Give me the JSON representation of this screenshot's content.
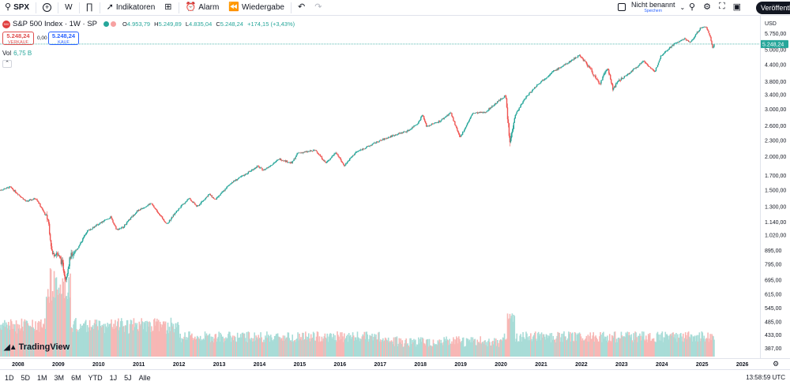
{
  "toolbar": {
    "symbol": "SPX",
    "interval": "W",
    "indicators": "Indikatoren",
    "alarm": "Alarm",
    "replay": "Wiedergabe",
    "layout_name": "Nicht benannt",
    "save_hint": "Speichern",
    "publish": "Veröffentl"
  },
  "legend": {
    "title": "S&P 500 Index · 1W · SP",
    "logo_text": "500",
    "open_label": "O",
    "open": "4.953,79",
    "high_label": "H",
    "high": "5.249,89",
    "low_label": "L",
    "low": "4.835,04",
    "close_label": "C",
    "close": "5.248,24",
    "change": "+174,15 (+3,43%)",
    "sell_price": "5.248,24",
    "sell_label": "VERKAUF",
    "spread": "0,00",
    "buy_price": "5.248,24",
    "buy_label": "KAUF",
    "vol_label": "Vol",
    "vol_value": "6,75 B"
  },
  "price_scale": {
    "currency": "USD",
    "current_price": "5.248,24"
  },
  "bottom": {
    "ranges": [
      "1D",
      "5D",
      "1M",
      "3M",
      "6M",
      "YTD",
      "1J",
      "5J",
      "Alle"
    ],
    "clock": "13:58:59 UTC",
    "watermark": "TradingView"
  },
  "colors": {
    "up": "#26a69a",
    "down": "#ef5350",
    "volume_up": "#a8dcd7",
    "volume_down": "#f7b7b5",
    "last_price": "#26a69a"
  },
  "chart_data": {
    "type": "candlestick",
    "title": "S&P 500 Index · 1W · SP",
    "scale": "log",
    "ylim": [
      360,
      6600
    ],
    "xlim": [
      2007.55,
      2026.4
    ],
    "y_ticks": [
      {
        "value": 387,
        "label": "387,00"
      },
      {
        "value": 433,
        "label": "433,00"
      },
      {
        "value": 485,
        "label": "485,00"
      },
      {
        "value": 545,
        "label": "545,00"
      },
      {
        "value": 615,
        "label": "615,00"
      },
      {
        "value": 695,
        "label": "695,00"
      },
      {
        "value": 795,
        "label": "795,00"
      },
      {
        "value": 895,
        "label": "895,00"
      },
      {
        "value": 1020,
        "label": "1.020,00"
      },
      {
        "value": 1140,
        "label": "1.140,00"
      },
      {
        "value": 1300,
        "label": "1.300,00"
      },
      {
        "value": 1500,
        "label": "1.500,00"
      },
      {
        "value": 1700,
        "label": "1.700,00"
      },
      {
        "value": 2000,
        "label": "2.000,00"
      },
      {
        "value": 2300,
        "label": "2.300,00"
      },
      {
        "value": 2600,
        "label": "2.600,00"
      },
      {
        "value": 3000,
        "label": "3.000,00"
      },
      {
        "value": 3400,
        "label": "3.400,00"
      },
      {
        "value": 3800,
        "label": "3.800,00"
      },
      {
        "value": 4400,
        "label": "4.400,00"
      },
      {
        "value": 5000,
        "label": "5.000,00"
      },
      {
        "value": 5750,
        "label": "5.750,00"
      }
    ],
    "x_ticks": [
      {
        "value": 2008,
        "label": "2008"
      },
      {
        "value": 2009,
        "label": "2009"
      },
      {
        "value": 2010,
        "label": "2010"
      },
      {
        "value": 2011,
        "label": "2011"
      },
      {
        "value": 2012,
        "label": "2012"
      },
      {
        "value": 2013,
        "label": "2013"
      },
      {
        "value": 2014,
        "label": "2014"
      },
      {
        "value": 2015,
        "label": "2015"
      },
      {
        "value": 2016,
        "label": "2016"
      },
      {
        "value": 2017,
        "label": "2017"
      },
      {
        "value": 2018,
        "label": "2018"
      },
      {
        "value": 2019,
        "label": "2019"
      },
      {
        "value": 2020,
        "label": "2020"
      },
      {
        "value": 2021,
        "label": "2021"
      },
      {
        "value": 2022,
        "label": "2022"
      },
      {
        "value": 2023,
        "label": "2023"
      },
      {
        "value": 2024,
        "label": "2024"
      },
      {
        "value": 2025,
        "label": "2025"
      },
      {
        "value": 2026,
        "label": "2026"
      }
    ],
    "price_path": [
      [
        2007.55,
        1500
      ],
      [
        2007.8,
        1540
      ],
      [
        2008.0,
        1450
      ],
      [
        2008.2,
        1360
      ],
      [
        2008.45,
        1400
      ],
      [
        2008.6,
        1270
      ],
      [
        2008.75,
        1160
      ],
      [
        2008.85,
        860
      ],
      [
        2008.95,
        880
      ],
      [
        2009.1,
        800
      ],
      [
        2009.18,
        700
      ],
      [
        2009.3,
        850
      ],
      [
        2009.5,
        920
      ],
      [
        2009.7,
        1050
      ],
      [
        2009.95,
        1110
      ],
      [
        2010.3,
        1190
      ],
      [
        2010.45,
        1070
      ],
      [
        2010.6,
        1090
      ],
      [
        2010.95,
        1250
      ],
      [
        2011.3,
        1340
      ],
      [
        2011.55,
        1200
      ],
      [
        2011.7,
        1120
      ],
      [
        2011.95,
        1260
      ],
      [
        2012.25,
        1400
      ],
      [
        2012.45,
        1300
      ],
      [
        2012.75,
        1450
      ],
      [
        2012.9,
        1380
      ],
      [
        2013.3,
        1600
      ],
      [
        2013.6,
        1700
      ],
      [
        2013.95,
        1840
      ],
      [
        2014.1,
        1780
      ],
      [
        2014.5,
        1960
      ],
      [
        2014.8,
        1890
      ],
      [
        2014.95,
        2060
      ],
      [
        2015.4,
        2110
      ],
      [
        2015.65,
        1890
      ],
      [
        2015.9,
        2080
      ],
      [
        2016.1,
        1850
      ],
      [
        2016.4,
        2080
      ],
      [
        2016.7,
        2180
      ],
      [
        2016.9,
        2260
      ],
      [
        2017.3,
        2390
      ],
      [
        2017.7,
        2500
      ],
      [
        2017.95,
        2680
      ],
      [
        2018.05,
        2870
      ],
      [
        2018.15,
        2590
      ],
      [
        2018.5,
        2720
      ],
      [
        2018.75,
        2920
      ],
      [
        2018.98,
        2350
      ],
      [
        2019.3,
        2900
      ],
      [
        2019.6,
        2920
      ],
      [
        2019.95,
        3230
      ],
      [
        2020.12,
        3380
      ],
      [
        2020.22,
        2240
      ],
      [
        2020.35,
        2850
      ],
      [
        2020.6,
        3300
      ],
      [
        2020.9,
        3700
      ],
      [
        2021.3,
        4150
      ],
      [
        2021.6,
        4400
      ],
      [
        2021.95,
        4780
      ],
      [
        2022.2,
        4300
      ],
      [
        2022.45,
        3700
      ],
      [
        2022.65,
        4300
      ],
      [
        2022.78,
        3580
      ],
      [
        2022.95,
        3850
      ],
      [
        2023.2,
        4100
      ],
      [
        2023.55,
        4550
      ],
      [
        2023.82,
        4120
      ],
      [
        2023.98,
        4760
      ],
      [
        2024.3,
        5250
      ],
      [
        2024.58,
        5500
      ],
      [
        2024.7,
        5300
      ],
      [
        2024.95,
        6000
      ],
      [
        2025.1,
        6100
      ],
      [
        2025.2,
        5600
      ],
      [
        2025.27,
        5050
      ],
      [
        2025.3,
        5248
      ]
    ]
  }
}
